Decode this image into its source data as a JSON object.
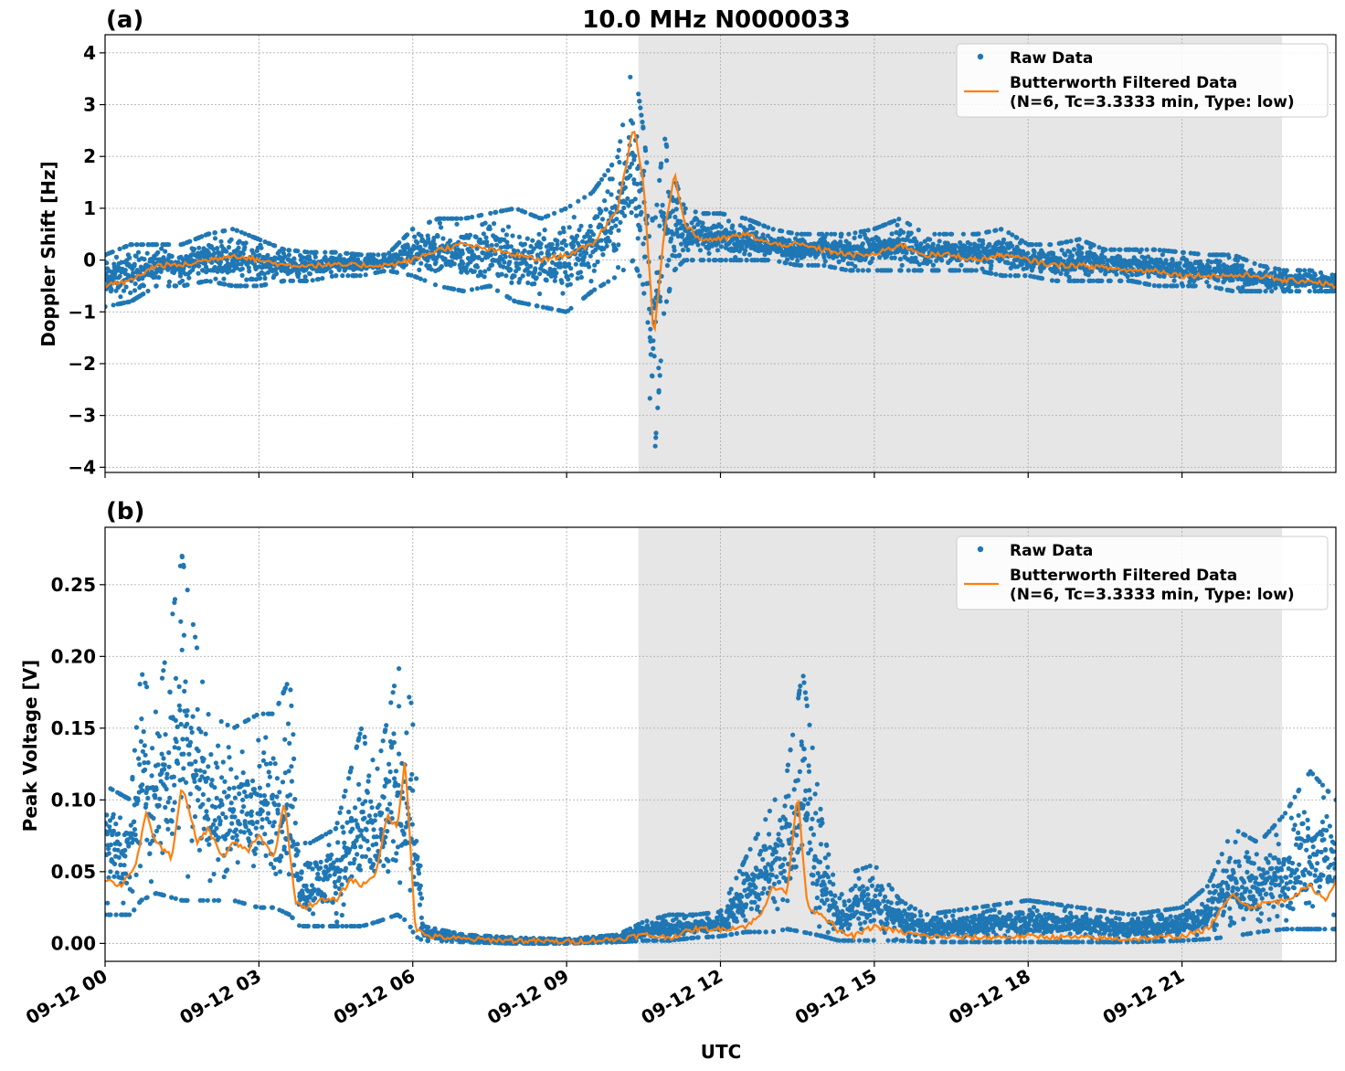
{
  "figure": {
    "title": "10.0 MHz N0000033",
    "xlabel": "UTC",
    "shade_range_hours": [
      10.4,
      22.95
    ],
    "colors": {
      "raw": "#1f77b4",
      "filtered": "#ff7f0e",
      "shade": "#e6e6e6",
      "grid": "#b0b0b0"
    }
  },
  "legend": {
    "raw_label": "Raw Data",
    "filtered_label_line1": "Butterworth Filtered Data",
    "filtered_label_line2": "(N=6, Tc=3.3333 min, Type: low)"
  },
  "chart_data": [
    {
      "panel_label": "(a)",
      "type": "scatter",
      "ylabel": "Doppler Shift [Hz]",
      "xlim_hours": [
        0,
        24
      ],
      "ylim": [
        -4.1,
        4.35
      ],
      "x_ticks": [
        "09-12 00",
        "09-12 03",
        "09-12 06",
        "09-12 09",
        "09-12 12",
        "09-12 15",
        "09-12 18",
        "09-12 21"
      ],
      "y_ticks": [
        "4",
        "3",
        "2",
        "1",
        "0",
        "−1",
        "−2",
        "−3",
        "−4"
      ],
      "y_tick_values": [
        4,
        3,
        2,
        1,
        0,
        -1,
        -2,
        -3,
        -4
      ],
      "legend": "top-right",
      "grid": true,
      "series": [
        {
          "name": "Raw Data",
          "kind": "scatter-band",
          "x_hours": [
            0,
            0.5,
            1,
            1.5,
            2,
            2.5,
            3,
            3.5,
            4,
            4.5,
            5,
            5.5,
            6,
            6.5,
            7,
            7.5,
            8,
            8.5,
            9,
            9.5,
            10,
            10.3,
            10.5,
            10.7,
            10.9,
            11.1,
            11.3,
            11.6,
            12,
            12.5,
            13,
            13.5,
            14,
            14.5,
            15,
            15.5,
            16,
            16.5,
            17,
            17.5,
            18,
            18.5,
            19,
            19.5,
            20,
            20.5,
            21,
            21.5,
            22,
            22.5,
            23,
            23.5,
            24
          ],
          "low": [
            -0.9,
            -0.8,
            -0.5,
            -0.5,
            -0.4,
            -0.5,
            -0.5,
            -0.4,
            -0.4,
            -0.3,
            -0.3,
            -0.2,
            -0.3,
            -0.5,
            -0.6,
            -0.5,
            -0.8,
            -0.9,
            -1.0,
            -0.6,
            -0.3,
            0.0,
            -0.5,
            -4.0,
            -1.0,
            -0.2,
            0.0,
            0.0,
            0.0,
            0.0,
            0.0,
            -0.1,
            -0.1,
            -0.2,
            -0.2,
            -0.2,
            -0.2,
            -0.2,
            -0.2,
            -0.3,
            -0.3,
            -0.4,
            -0.4,
            -0.4,
            -0.4,
            -0.5,
            -0.5,
            -0.5,
            -0.6,
            -0.6,
            -0.6,
            -0.6,
            -0.6
          ],
          "high": [
            0.1,
            0.3,
            0.3,
            0.3,
            0.5,
            0.6,
            0.4,
            0.2,
            0.15,
            0.15,
            0.1,
            0.1,
            0.6,
            0.8,
            0.8,
            0.9,
            1.0,
            0.8,
            1.0,
            1.3,
            2.0,
            3.9,
            2.5,
            0.5,
            2.4,
            1.6,
            1.0,
            0.9,
            0.9,
            0.8,
            0.6,
            0.5,
            0.5,
            0.5,
            0.6,
            0.8,
            0.5,
            0.5,
            0.5,
            0.6,
            0.3,
            0.3,
            0.4,
            0.2,
            0.2,
            0.2,
            0.15,
            0.1,
            0.1,
            -0.1,
            -0.2,
            -0.2,
            -0.3
          ]
        },
        {
          "name": "Butterworth Filtered Data",
          "kind": "line",
          "x_hours": [
            0,
            0.5,
            1,
            1.5,
            2,
            2.5,
            3,
            3.5,
            4,
            4.5,
            5,
            5.5,
            6,
            6.5,
            7,
            7.5,
            8,
            8.5,
            9,
            9.5,
            10,
            10.3,
            10.5,
            10.7,
            10.9,
            11.1,
            11.3,
            11.6,
            12,
            12.5,
            13,
            13.5,
            14,
            14.5,
            15,
            15.5,
            16,
            16.5,
            17,
            17.5,
            18,
            18.5,
            19,
            19.5,
            20,
            20.5,
            21,
            21.5,
            22,
            22.5,
            23,
            23.5,
            24
          ],
          "y": [
            -0.5,
            -0.4,
            -0.1,
            -0.1,
            0.0,
            0.1,
            0.0,
            -0.1,
            -0.1,
            -0.1,
            -0.1,
            -0.1,
            0.0,
            0.2,
            0.3,
            0.2,
            0.1,
            0.0,
            0.1,
            0.3,
            1.0,
            2.6,
            1.5,
            -1.5,
            0.5,
            1.7,
            0.7,
            0.4,
            0.4,
            0.5,
            0.3,
            0.3,
            0.2,
            0.1,
            0.1,
            0.3,
            0.1,
            0.1,
            0.0,
            0.1,
            0.0,
            -0.1,
            -0.1,
            -0.15,
            -0.2,
            -0.2,
            -0.3,
            -0.3,
            -0.3,
            -0.3,
            -0.4,
            -0.4,
            -0.5
          ]
        }
      ]
    },
    {
      "panel_label": "(b)",
      "type": "scatter",
      "ylabel": "Peak Voltage [V]",
      "xlim_hours": [
        0,
        24
      ],
      "ylim": [
        -0.0125,
        0.29
      ],
      "x_ticks": [
        "09-12 00",
        "09-12 03",
        "09-12 06",
        "09-12 09",
        "09-12 12",
        "09-12 15",
        "09-12 18",
        "09-12 21"
      ],
      "y_ticks": [
        "0.25",
        "0.20",
        "0.15",
        "0.10",
        "0.05",
        "0.00"
      ],
      "y_tick_values": [
        0.25,
        0.2,
        0.15,
        0.1,
        0.05,
        0.0
      ],
      "legend": "top-right",
      "grid": true,
      "series": [
        {
          "name": "Raw Data",
          "kind": "scatter-band",
          "x_hours": [
            0,
            0.5,
            0.7,
            1,
            1.5,
            2,
            2.5,
            3,
            3.3,
            3.6,
            3.8,
            4,
            4.5,
            5,
            5.3,
            5.7,
            5.9,
            6.05,
            6.2,
            7,
            8,
            9,
            10,
            10.5,
            11,
            11.5,
            12,
            12.5,
            13,
            13.3,
            13.6,
            14,
            14.3,
            14.6,
            15,
            15.5,
            16,
            17,
            18,
            19,
            20,
            21,
            21.5,
            22,
            22.5,
            23,
            23.5,
            24
          ],
          "low": [
            0.02,
            0.02,
            0.03,
            0.035,
            0.03,
            0.03,
            0.03,
            0.025,
            0.025,
            0.02,
            0.012,
            0.012,
            0.012,
            0.012,
            0.015,
            0.02,
            0.015,
            0.005,
            0.002,
            0.001,
            0.0,
            0.0,
            0.001,
            0.002,
            0.002,
            0.004,
            0.005,
            0.008,
            0.008,
            0.01,
            0.008,
            0.005,
            0.002,
            0.002,
            0.002,
            0.002,
            0.001,
            0.001,
            0.001,
            0.001,
            0.001,
            0.002,
            0.003,
            0.005,
            0.008,
            0.01,
            0.01,
            0.01
          ],
          "high": [
            0.11,
            0.1,
            0.19,
            0.16,
            0.27,
            0.16,
            0.15,
            0.16,
            0.16,
            0.185,
            0.07,
            0.07,
            0.08,
            0.15,
            0.12,
            0.19,
            0.2,
            0.13,
            0.012,
            0.006,
            0.004,
            0.003,
            0.006,
            0.015,
            0.02,
            0.02,
            0.022,
            0.06,
            0.095,
            0.12,
            0.19,
            0.08,
            0.03,
            0.05,
            0.055,
            0.03,
            0.02,
            0.025,
            0.03,
            0.025,
            0.02,
            0.025,
            0.04,
            0.08,
            0.07,
            0.09,
            0.12,
            0.1
          ]
        },
        {
          "name": "Butterworth Filtered Data",
          "kind": "line",
          "x_hours": [
            0,
            0.3,
            0.6,
            0.8,
            1.0,
            1.3,
            1.5,
            1.8,
            2.0,
            2.3,
            2.5,
            2.8,
            3.0,
            3.3,
            3.5,
            3.7,
            3.9,
            4.2,
            4.5,
            4.8,
            5.0,
            5.3,
            5.5,
            5.7,
            5.85,
            5.95,
            6.05,
            6.3,
            7,
            8,
            9,
            10,
            10.5,
            11,
            11.5,
            12,
            12.5,
            12.8,
            13.0,
            13.3,
            13.5,
            13.7,
            14.0,
            14.3,
            14.6,
            15,
            15.5,
            16,
            17,
            18,
            19,
            20,
            21,
            21.5,
            22,
            22.3,
            22.6,
            23,
            23.5,
            23.8,
            24
          ],
          "y": [
            0.045,
            0.04,
            0.055,
            0.09,
            0.07,
            0.06,
            0.11,
            0.07,
            0.08,
            0.06,
            0.07,
            0.065,
            0.075,
            0.06,
            0.1,
            0.03,
            0.025,
            0.03,
            0.03,
            0.045,
            0.04,
            0.05,
            0.09,
            0.08,
            0.13,
            0.07,
            0.01,
            0.005,
            0.003,
            0.002,
            0.001,
            0.003,
            0.006,
            0.004,
            0.01,
            0.01,
            0.012,
            0.02,
            0.04,
            0.035,
            0.105,
            0.025,
            0.02,
            0.008,
            0.005,
            0.012,
            0.008,
            0.005,
            0.004,
            0.005,
            0.004,
            0.003,
            0.005,
            0.01,
            0.035,
            0.025,
            0.028,
            0.03,
            0.04,
            0.03,
            0.045
          ]
        }
      ]
    }
  ]
}
